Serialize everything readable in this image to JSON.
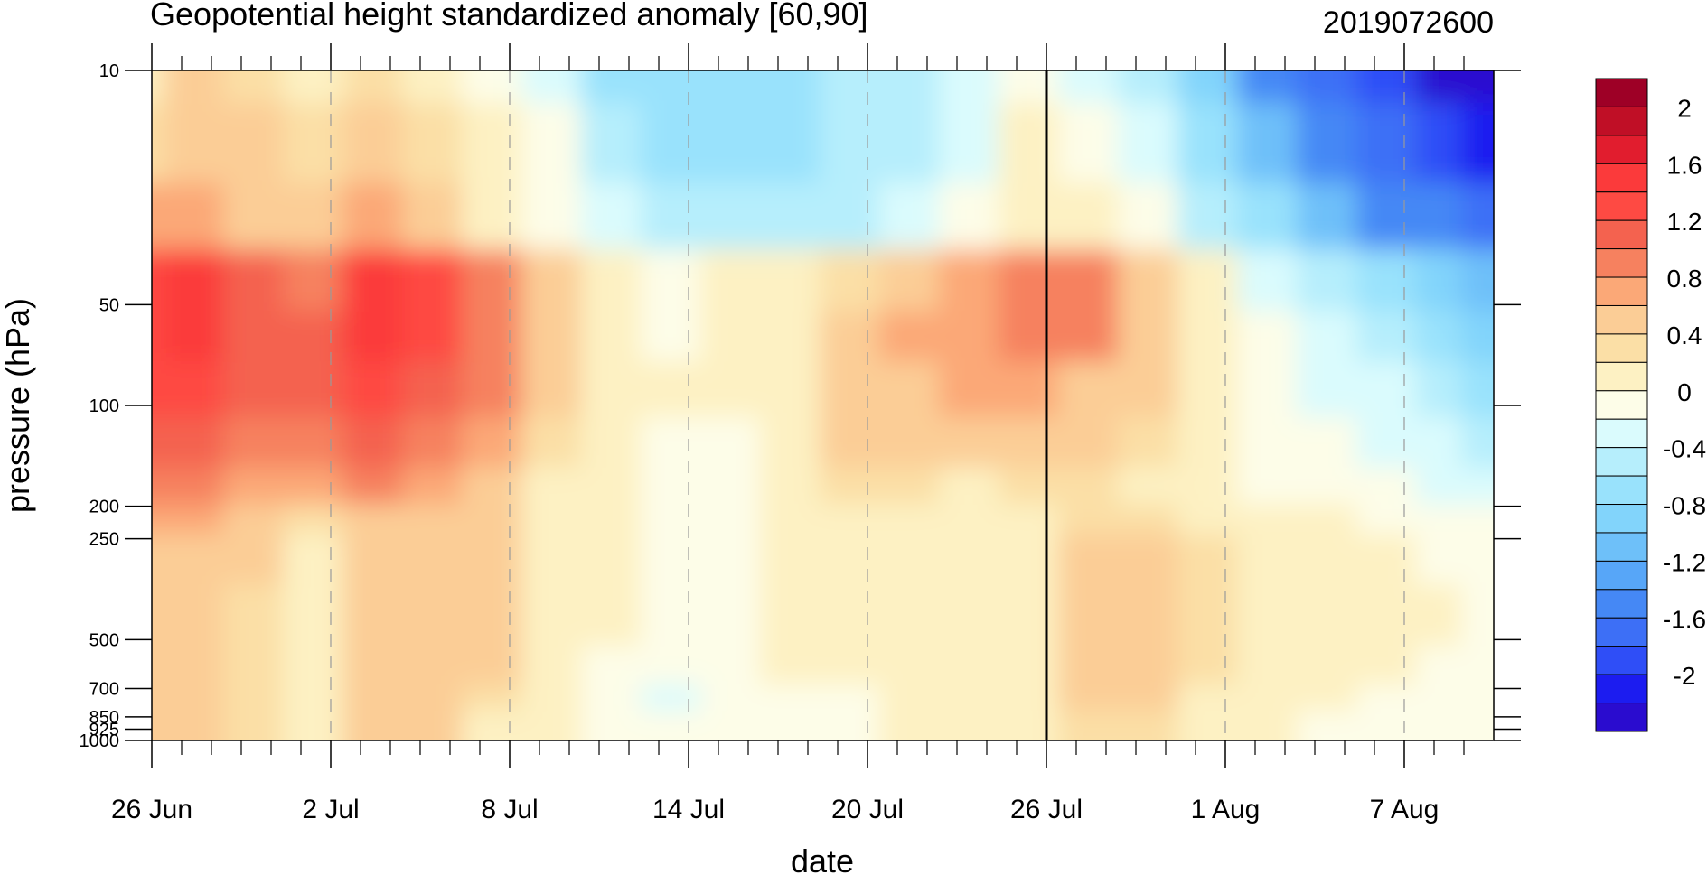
{
  "chart_data": {
    "type": "heatmap",
    "title": "Geopotential height standardized anomaly [60,90]",
    "run_label": "2019072600",
    "xlabel": "date",
    "ylabel": "pressure (hPa)",
    "x_range_days": [
      0,
      45
    ],
    "x_ticks": [
      {
        "day": 0,
        "label": "26 Jun"
      },
      {
        "day": 6,
        "label": "2 Jul"
      },
      {
        "day": 12,
        "label": "8 Jul"
      },
      {
        "day": 18,
        "label": "14 Jul"
      },
      {
        "day": 24,
        "label": "20 Jul"
      },
      {
        "day": 30,
        "label": "26 Jul"
      },
      {
        "day": 36,
        "label": "1 Aug"
      },
      {
        "day": 42,
        "label": "7 Aug"
      }
    ],
    "y_scale": "log",
    "y_range": [
      1000,
      10
    ],
    "y_ticks": [
      10,
      50,
      100,
      200,
      250,
      500,
      700,
      850,
      925,
      1000
    ],
    "y_tick_labels": [
      "10",
      "50",
      "100",
      "200",
      "250",
      "500",
      "700",
      "850",
      "925",
      "1000"
    ],
    "forecast_start_day": 30,
    "colorbar": {
      "levels": [
        -2.2,
        -2.0,
        -1.8,
        -1.6,
        -1.4,
        -1.2,
        -1.0,
        -0.8,
        -0.6,
        -0.4,
        -0.2,
        0,
        0.2,
        0.4,
        0.6,
        0.8,
        1.0,
        1.2,
        1.4,
        1.6,
        1.8,
        2.0,
        2.2
      ],
      "colors": [
        "#2a0ccf",
        "#1c1cf0",
        "#2f4ef7",
        "#3d6ff6",
        "#4588f5",
        "#57a6f8",
        "#6ec0f9",
        "#82d4fb",
        "#99e2fc",
        "#b6eefc",
        "#dafbfd",
        "#fdfde8",
        "#fdf1c3",
        "#fbdfa6",
        "#fbcd96",
        "#fba877",
        "#f6815f",
        "#f4624f",
        "#fe4a43",
        "#fb3a3b",
        "#e11d2e",
        "#c00f26",
        "#9e0026"
      ],
      "tick_labels": [
        "2",
        "1.6",
        "1.2",
        "0.8",
        "0.4",
        "0",
        "-0.4",
        "-0.8",
        "-1.2",
        "-1.6",
        "-2"
      ]
    },
    "anomaly_grid": {
      "x_days": [
        0,
        2,
        4,
        6,
        8,
        10,
        12,
        14,
        16,
        18,
        20,
        22,
        24,
        26,
        28,
        30,
        32,
        34,
        36,
        38,
        40,
        42,
        44,
        45
      ],
      "pressure_hpa": [
        10,
        20,
        30,
        50,
        70,
        100,
        150,
        200,
        250,
        300,
        500,
        700,
        850,
        1000
      ],
      "values": [
        [
          0.3,
          0.5,
          0.4,
          0.3,
          0.4,
          0.2,
          0.0,
          -0.3,
          -0.6,
          -0.7,
          -0.7,
          -0.6,
          -0.5,
          -0.5,
          -0.3,
          0.0,
          -0.2,
          -0.5,
          -0.9,
          -1.3,
          -1.6,
          -1.9,
          -2.2,
          -2.3
        ],
        [
          0.4,
          0.6,
          0.5,
          0.4,
          0.6,
          0.4,
          0.1,
          -0.1,
          -0.4,
          -0.6,
          -0.7,
          -0.6,
          -0.5,
          -0.4,
          -0.3,
          0.1,
          0.0,
          -0.3,
          -0.6,
          -1.0,
          -1.3,
          -1.6,
          -1.9,
          -2.0
        ],
        [
          0.7,
          0.8,
          0.6,
          0.6,
          0.8,
          0.6,
          0.3,
          0.0,
          -0.2,
          -0.4,
          -0.5,
          -0.5,
          -0.4,
          -0.3,
          -0.1,
          0.3,
          0.2,
          -0.1,
          -0.4,
          -0.7,
          -1.0,
          -1.3,
          -1.5,
          -1.6
        ],
        [
          1.3,
          1.5,
          1.2,
          1.0,
          1.6,
          1.3,
          0.9,
          0.5,
          0.2,
          0.05,
          0.1,
          0.2,
          0.4,
          0.6,
          0.8,
          0.9,
          0.9,
          0.5,
          0.1,
          -0.3,
          -0.5,
          -0.7,
          -0.9,
          -1.0
        ],
        [
          1.4,
          1.6,
          1.2,
          1.1,
          1.7,
          1.4,
          1.0,
          0.5,
          0.2,
          0.05,
          0.1,
          0.3,
          0.5,
          0.7,
          0.8,
          0.9,
          0.9,
          0.5,
          0.1,
          -0.1,
          -0.3,
          -0.5,
          -0.7,
          -0.8
        ],
        [
          1.3,
          1.3,
          1.1,
          1.1,
          1.4,
          1.2,
          0.9,
          0.5,
          0.2,
          0.1,
          0.1,
          0.3,
          0.5,
          0.6,
          0.7,
          0.7,
          0.6,
          0.5,
          0.2,
          0.0,
          -0.2,
          -0.3,
          -0.5,
          -0.6
        ],
        [
          1.1,
          1.2,
          1.0,
          1.0,
          1.2,
          1.0,
          0.8,
          0.4,
          0.1,
          0.05,
          0.05,
          0.2,
          0.5,
          0.5,
          0.5,
          0.5,
          0.5,
          0.4,
          0.2,
          0.0,
          -0.1,
          -0.2,
          -0.3,
          -0.4
        ],
        [
          0.9,
          0.9,
          0.7,
          0.8,
          0.9,
          0.7,
          0.6,
          0.3,
          0.1,
          0.0,
          0.0,
          0.2,
          0.4,
          0.4,
          0.3,
          0.4,
          0.4,
          0.3,
          0.2,
          0.0,
          0.0,
          -0.1,
          -0.2,
          -0.2
        ],
        [
          0.8,
          0.8,
          0.5,
          0.4,
          0.6,
          0.6,
          0.6,
          0.3,
          0.1,
          0.0,
          0.0,
          0.2,
          0.3,
          0.3,
          0.2,
          0.3,
          0.4,
          0.4,
          0.3,
          0.2,
          0.1,
          0.0,
          0.0,
          0.0
        ],
        [
          0.6,
          0.6,
          0.5,
          0.3,
          0.5,
          0.5,
          0.5,
          0.3,
          0.1,
          0.0,
          0.0,
          0.2,
          0.3,
          0.2,
          0.2,
          0.3,
          0.5,
          0.5,
          0.4,
          0.3,
          0.2,
          0.1,
          0.05,
          0.05
        ],
        [
          0.5,
          0.6,
          0.4,
          0.3,
          0.5,
          0.5,
          0.5,
          0.2,
          0.1,
          0.0,
          0.0,
          0.1,
          0.2,
          0.2,
          0.1,
          0.2,
          0.5,
          0.5,
          0.4,
          0.3,
          0.3,
          0.2,
          0.1,
          0.05
        ],
        [
          0.5,
          0.5,
          0.4,
          0.3,
          0.5,
          0.5,
          0.5,
          0.2,
          0.0,
          -0.1,
          0.0,
          0.1,
          0.1,
          0.1,
          0.1,
          0.2,
          0.5,
          0.5,
          0.4,
          0.3,
          0.2,
          0.1,
          0.05,
          0.05
        ],
        [
          0.5,
          0.5,
          0.4,
          0.3,
          0.5,
          0.5,
          0.4,
          0.2,
          -0.1,
          -0.2,
          -0.1,
          0.0,
          0.0,
          0.1,
          0.1,
          0.2,
          0.5,
          0.5,
          0.3,
          0.2,
          0.1,
          0.05,
          0.0,
          0.0
        ],
        [
          0.5,
          0.5,
          0.4,
          0.3,
          0.5,
          0.5,
          0.3,
          0.1,
          -0.1,
          -0.1,
          -0.1,
          0.0,
          0.0,
          0.1,
          0.1,
          0.1,
          0.4,
          0.4,
          0.2,
          0.1,
          0.05,
          0.0,
          -0.1,
          -0.1
        ]
      ]
    }
  }
}
